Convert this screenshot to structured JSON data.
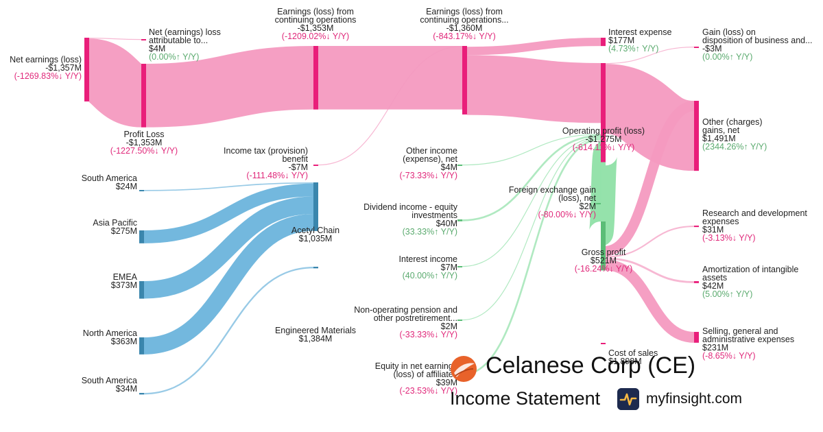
{
  "chart_data": {
    "type": "sankey",
    "colors": {
      "pink": "#f49ac0",
      "pink_node": "#e91e7a",
      "blue": "#6cb4dc",
      "blue_node": "#3a86ad",
      "green": "#8fe0a6",
      "green_node": "#5bbd77",
      "positive_change": "#5aaa6e",
      "negative_change": "#e0287a"
    },
    "nodes": [
      {
        "id": "net_earnings",
        "lines": [
          "Net earnings (loss)",
          "-$1,357M"
        ],
        "change": "(-1269.83%↓ Y/Y)",
        "dir": "neg",
        "color": "pink"
      },
      {
        "id": "nci",
        "lines": [
          "Net (earnings) loss",
          "attributable to...",
          "$4M"
        ],
        "change": "(0.00%↑ Y/Y)",
        "dir": "pos",
        "color": "pink"
      },
      {
        "id": "profit_loss",
        "lines": [
          "Profit Loss",
          "-$1,353M"
        ],
        "change": "(-1227.50%↓ Y/Y)",
        "dir": "neg",
        "color": "pink"
      },
      {
        "id": "earn_cont1",
        "lines": [
          "Earnings (loss) from",
          "continuing operations",
          "-$1,353M"
        ],
        "change": "(-1209.02%↓ Y/Y)",
        "dir": "neg",
        "color": "pink"
      },
      {
        "id": "earn_cont2",
        "lines": [
          "Earnings (loss) from",
          "continuing operations...",
          "-$1,360M"
        ],
        "change": "(-843.17%↓ Y/Y)",
        "dir": "neg",
        "color": "pink"
      },
      {
        "id": "income_tax",
        "lines": [
          "Income tax (provision)",
          "benefit",
          "-$7M"
        ],
        "change": "(-111.48%↓ Y/Y)",
        "dir": "neg",
        "color": "pink"
      },
      {
        "id": "interest_expense",
        "lines": [
          "Interest expense",
          "$177M"
        ],
        "change": "(4.73%↑ Y/Y)",
        "dir": "pos",
        "color": "pink"
      },
      {
        "id": "operating_profit",
        "lines": [
          "Operating profit (loss)",
          "-$1,275M"
        ],
        "change": "(-614.11%↓ Y/Y)",
        "dir": "neg",
        "color": "pink"
      },
      {
        "id": "gain_disposition",
        "lines": [
          "Gain (loss) on",
          "disposition of business and...",
          "-$3M"
        ],
        "change": "(0.00%↑ Y/Y)",
        "dir": "pos",
        "color": "pink"
      },
      {
        "id": "other_charges",
        "lines": [
          "Other (charges)",
          "gains, net",
          "$1,491M"
        ],
        "change": "(2344.26%↑ Y/Y)",
        "dir": "pos",
        "color": "pink"
      },
      {
        "id": "other_income",
        "lines": [
          "Other income",
          "(expense), net",
          "$4M"
        ],
        "change": "(-73.33%↓ Y/Y)",
        "dir": "neg",
        "color": "green"
      },
      {
        "id": "dividend_income",
        "lines": [
          "Dividend income - equity",
          "investments",
          "$40M"
        ],
        "change": "(33.33%↑ Y/Y)",
        "dir": "pos",
        "color": "green"
      },
      {
        "id": "interest_income",
        "lines": [
          "Interest income",
          "$7M"
        ],
        "change": "(40.00%↑ Y/Y)",
        "dir": "pos",
        "color": "green"
      },
      {
        "id": "pension",
        "lines": [
          "Non-operating pension and",
          "other postretirement...",
          "$2M"
        ],
        "change": "(-33.33%↓ Y/Y)",
        "dir": "neg",
        "color": "green"
      },
      {
        "id": "equity_net",
        "lines": [
          "Equity in net earnings",
          "(loss) of affiliates",
          "$39M"
        ],
        "change": "(-23.53%↓ Y/Y)",
        "dir": "neg",
        "color": "green"
      },
      {
        "id": "fx_gain",
        "lines": [
          "Foreign exchange gain",
          "(loss), net",
          "$2M"
        ],
        "change": "(-80.00%↓ Y/Y)",
        "dir": "neg",
        "color": "green"
      },
      {
        "id": "gross_profit",
        "lines": [
          "Gross profit",
          "$521M"
        ],
        "change": "(-16.24%↓ Y/Y)",
        "dir": "neg",
        "color": "green"
      },
      {
        "id": "rnd",
        "lines": [
          "Research and development",
          "expenses",
          "$31M"
        ],
        "change": "(-3.13%↓ Y/Y)",
        "dir": "neg",
        "color": "pink"
      },
      {
        "id": "amortization",
        "lines": [
          "Amortization of intangible",
          "assets",
          "$42M"
        ],
        "change": "(5.00%↑ Y/Y)",
        "dir": "pos",
        "color": "pink"
      },
      {
        "id": "sga",
        "lines": [
          "Selling, general and",
          "administrative expenses",
          "$231M"
        ],
        "change": "(-8.65%↓ Y/Y)",
        "dir": "neg",
        "color": "pink"
      },
      {
        "id": "cost_of_sales",
        "lines": [
          "Cost of sales",
          "$1,898M"
        ],
        "change": "",
        "dir": "neg",
        "color": "pink"
      },
      {
        "id": "south_america_1",
        "lines": [
          "South America",
          "$24M"
        ],
        "change": "",
        "dir": "pos",
        "color": "blue"
      },
      {
        "id": "asia_pacific",
        "lines": [
          "Asia Pacific",
          "$275M"
        ],
        "change": "",
        "dir": "pos",
        "color": "blue"
      },
      {
        "id": "emea",
        "lines": [
          "EMEA",
          "$373M"
        ],
        "change": "",
        "dir": "pos",
        "color": "blue"
      },
      {
        "id": "north_america",
        "lines": [
          "North America",
          "$363M"
        ],
        "change": "",
        "dir": "pos",
        "color": "blue"
      },
      {
        "id": "south_america_2",
        "lines": [
          "South America",
          "$34M"
        ],
        "change": "",
        "dir": "pos",
        "color": "blue"
      },
      {
        "id": "acetyl_chain",
        "lines": [
          "Acetyl Chain",
          "$1,035M"
        ],
        "change": "",
        "dir": "pos",
        "color": "blue"
      },
      {
        "id": "engineered_materials",
        "lines": [
          "Engineered Materials",
          "$1,384M"
        ],
        "change": "",
        "dir": "pos",
        "color": "blue"
      }
    ],
    "links": [
      {
        "source": "nci",
        "target": "net_earnings",
        "value": 4,
        "color": "pink"
      },
      {
        "source": "profit_loss",
        "target": "net_earnings",
        "value": 1353,
        "color": "pink"
      },
      {
        "source": "earn_cont1",
        "target": "profit_loss",
        "value": 1353,
        "color": "pink"
      },
      {
        "source": "earn_cont2",
        "target": "earn_cont1",
        "value": 1353,
        "color": "pink"
      },
      {
        "source": "income_tax",
        "target": "earn_cont2",
        "value": 7,
        "color": "pink"
      },
      {
        "source": "interest_expense",
        "target": "earn_cont2",
        "value": 177,
        "color": "pink"
      },
      {
        "source": "operating_profit",
        "target": "earn_cont2",
        "value": 1275,
        "color": "pink"
      },
      {
        "source": "gain_disposition",
        "target": "operating_profit",
        "value": 3,
        "color": "pink"
      },
      {
        "source": "other_charges",
        "target": "operating_profit",
        "value": 1491,
        "color": "pink"
      },
      {
        "source": "other_income",
        "target": "operating_profit",
        "value": 4,
        "color": "green"
      },
      {
        "source": "dividend_income",
        "target": "operating_profit",
        "value": 40,
        "color": "green"
      },
      {
        "source": "interest_income",
        "target": "operating_profit",
        "value": 7,
        "color": "green"
      },
      {
        "source": "pension",
        "target": "operating_profit",
        "value": 2,
        "color": "green"
      },
      {
        "source": "equity_net",
        "target": "operating_profit",
        "value": 39,
        "color": "green"
      },
      {
        "source": "fx_gain",
        "target": "operating_profit",
        "value": 2,
        "color": "green"
      },
      {
        "source": "gross_profit",
        "target": "operating_profit",
        "value": 521,
        "color": "green"
      },
      {
        "source": "gross_profit",
        "target": "other_charges",
        "value": 217,
        "color": "pink"
      },
      {
        "source": "gross_profit",
        "target": "rnd",
        "value": 31,
        "color": "pink"
      },
      {
        "source": "gross_profit",
        "target": "amortization",
        "value": 42,
        "color": "pink"
      },
      {
        "source": "gross_profit",
        "target": "sga",
        "value": 231,
        "color": "pink"
      },
      {
        "source": "south_america_1",
        "target": "acetyl_chain",
        "value": 24,
        "color": "blue"
      },
      {
        "source": "asia_pacific",
        "target": "acetyl_chain",
        "value": 275,
        "color": "blue"
      },
      {
        "source": "emea",
        "target": "acetyl_chain",
        "value": 373,
        "color": "blue"
      },
      {
        "source": "north_america",
        "target": "acetyl_chain",
        "value": 363,
        "color": "blue"
      },
      {
        "source": "south_america_2",
        "target": "engineered_materials",
        "value": 34,
        "color": "blue"
      }
    ]
  },
  "brand": {
    "company": "Celanese Corp (CE)",
    "statement": "Income Statement",
    "site": "myfinsight.com"
  }
}
